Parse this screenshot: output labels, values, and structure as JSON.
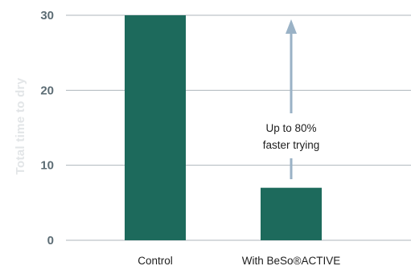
{
  "chart_data": {
    "type": "bar",
    "categories": [
      "Control",
      "With BeSo®ACTIVE"
    ],
    "values": [
      30,
      7
    ],
    "ylabel": "Total time to dry",
    "ylim": [
      0,
      30
    ],
    "yticks": [
      0,
      10,
      20,
      30
    ],
    "grid": true,
    "annotation": {
      "line1": "Up to 80%",
      "line2": "faster trying",
      "arrow": "upward, above second bar"
    },
    "colors": {
      "bar": "#1d6a5c",
      "arrow": "#9ab2c6",
      "tick_label": "#5c6c74",
      "axis_label": "#e2e5e7",
      "grid": "#aeb6bb",
      "text": "#1e1e1e"
    }
  }
}
